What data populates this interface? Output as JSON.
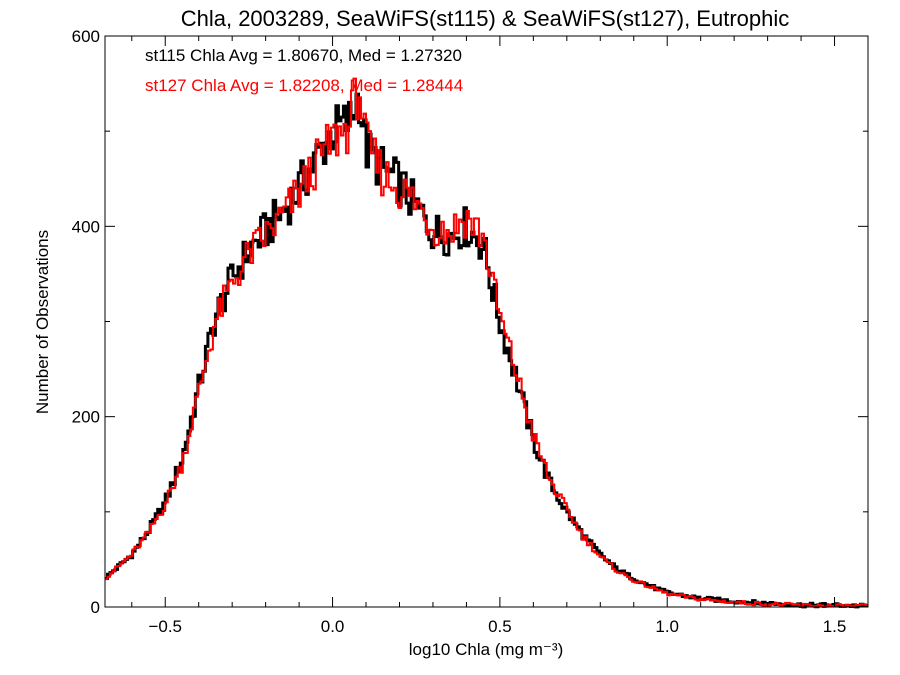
{
  "chart_data": {
    "type": "line",
    "style": "histogram-step",
    "title": "Chla, 2003289, SeaWiFS(st115) & SeaWiFS(st127), Eutrophic",
    "xlabel": "log10 Chla (mg m⁻³)",
    "ylabel": "Number of Observations",
    "xlim": [
      -0.68,
      1.6
    ],
    "ylim": [
      0,
      600
    ],
    "x_ticks": [
      -0.5,
      0.0,
      0.5,
      1.0,
      1.5
    ],
    "x_tick_labels": [
      "−0.5",
      "0.0",
      "0.5",
      "1.0",
      "1.5"
    ],
    "y_ticks": [
      0,
      200,
      400,
      600
    ],
    "y_tick_labels": [
      "0",
      "200",
      "400",
      "600"
    ],
    "grid": false,
    "annotations": [
      {
        "text": "st115 Chla Avg = 1.80670, Med = 1.27320",
        "color": "#000000"
      },
      {
        "text": "st127 Chla Avg = 1.82208, Med = 1.28444",
        "color": "#ff0000"
      }
    ],
    "series": [
      {
        "color": "#000000",
        "x": [
          -0.68,
          -0.6,
          -0.55,
          -0.5,
          -0.45,
          -0.4,
          -0.35,
          -0.3,
          -0.25,
          -0.2,
          -0.15,
          -0.1,
          -0.05,
          0.0,
          0.05,
          0.08,
          0.1,
          0.15,
          0.2,
          0.25,
          0.3,
          0.35,
          0.4,
          0.45,
          0.5,
          0.55,
          0.6,
          0.65,
          0.7,
          0.75,
          0.8,
          0.85,
          0.9,
          0.95,
          1.0,
          1.1,
          1.2,
          1.3,
          1.4,
          1.5,
          1.6
        ],
        "y": [
          30,
          55,
          80,
          110,
          155,
          230,
          305,
          345,
          375,
          395,
          415,
          440,
          470,
          500,
          510,
          540,
          480,
          460,
          445,
          420,
          395,
          390,
          400,
          380,
          300,
          240,
          175,
          130,
          100,
          75,
          55,
          40,
          30,
          22,
          15,
          9,
          6,
          4,
          2,
          2,
          1
        ]
      },
      {
        "color": "#ff0000",
        "x": [
          -0.68,
          -0.6,
          -0.55,
          -0.5,
          -0.45,
          -0.4,
          -0.35,
          -0.3,
          -0.25,
          -0.2,
          -0.15,
          -0.1,
          -0.05,
          0.0,
          0.05,
          0.08,
          0.1,
          0.15,
          0.2,
          0.25,
          0.3,
          0.35,
          0.4,
          0.45,
          0.5,
          0.55,
          0.6,
          0.65,
          0.7,
          0.75,
          0.8,
          0.85,
          0.9,
          0.95,
          1.0,
          1.1,
          1.2,
          1.3,
          1.4,
          1.5,
          1.6
        ],
        "y": [
          30,
          55,
          78,
          108,
          150,
          225,
          300,
          340,
          370,
          390,
          410,
          435,
          465,
          490,
          505,
          550,
          485,
          455,
          440,
          425,
          400,
          395,
          410,
          390,
          305,
          245,
          180,
          133,
          102,
          74,
          53,
          38,
          28,
          21,
          14,
          8,
          5,
          3,
          2,
          1,
          1
        ]
      }
    ]
  }
}
